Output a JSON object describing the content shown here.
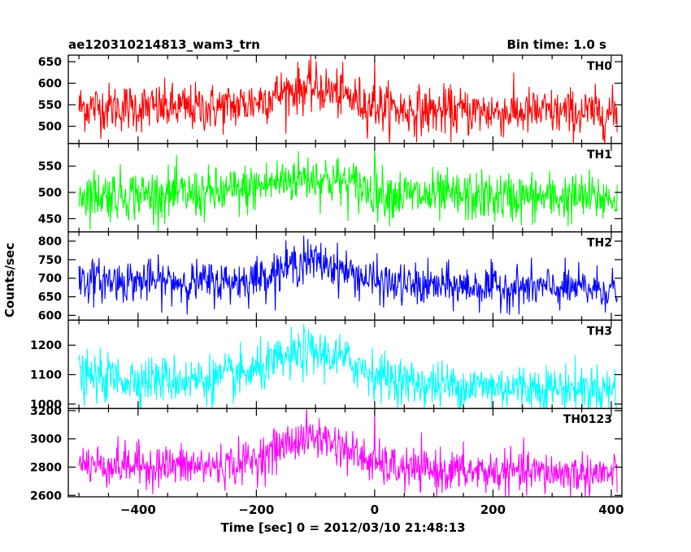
{
  "chart_data": {
    "type": "line",
    "title": "ae120310214813_wam3_trn",
    "bin_label": "Bin time: 1.0 s",
    "ylabel": "Counts/sec",
    "xlabel": "Time [sec] 0 = 2012/03/10 21:48:13",
    "x_range": [
      -518,
      418
    ],
    "x_ticks": [
      -400,
      -200,
      0,
      200,
      400
    ],
    "x_tick_labels": [
      "−400",
      "−200",
      "0",
      "200",
      "400"
    ],
    "panels": [
      {
        "name": "TH0",
        "color": "#ff0000",
        "ylim": [
          460,
          665
        ],
        "y_ticks": [
          500,
          550,
          600,
          650
        ],
        "baseline": 545,
        "peak": 595,
        "noise_sd": 28,
        "peak_center": -110,
        "peak_width": 90,
        "spike_x": 0,
        "spike_y": 655,
        "trend": -15
      },
      {
        "name": "TH1",
        "color": "#00ff00",
        "ylim": [
          425,
          593
        ],
        "y_ticks": [
          450,
          500,
          550
        ],
        "baseline": 497,
        "peak": 532,
        "noise_sd": 24,
        "peak_center": -110,
        "peak_width": 100,
        "spike_x": 0,
        "spike_y": 580,
        "trend": -8
      },
      {
        "name": "TH2",
        "color": "#0000ff",
        "ylim": [
          587,
          825
        ],
        "y_ticks": [
          600,
          650,
          700,
          750,
          800
        ],
        "baseline": 695,
        "peak": 755,
        "noise_sd": 28,
        "peak_center": -105,
        "peak_width": 80,
        "spike_x": -120,
        "spike_y": 815,
        "trend": -25
      },
      {
        "name": "TH3",
        "color": "#00ffff",
        "ylim": [
          985,
          1285
        ],
        "y_ticks": [
          1000,
          1100,
          1200
        ],
        "baseline": 1090,
        "peak": 1190,
        "noise_sd": 40,
        "peak_center": -100,
        "peak_width": 100,
        "spike_x": -120,
        "spike_y": 1270,
        "trend": -40
      },
      {
        "name": "TH0123",
        "color": "#ff00ff",
        "ylim": [
          2590,
          3215
        ],
        "y_ticks": [
          2600,
          2800,
          3000,
          3200
        ],
        "baseline": 2820,
        "peak": 3040,
        "noise_sd": 75,
        "peak_center": -105,
        "peak_width": 85,
        "spike_x": 0,
        "spike_y": 3200,
        "trend": -70
      }
    ]
  }
}
